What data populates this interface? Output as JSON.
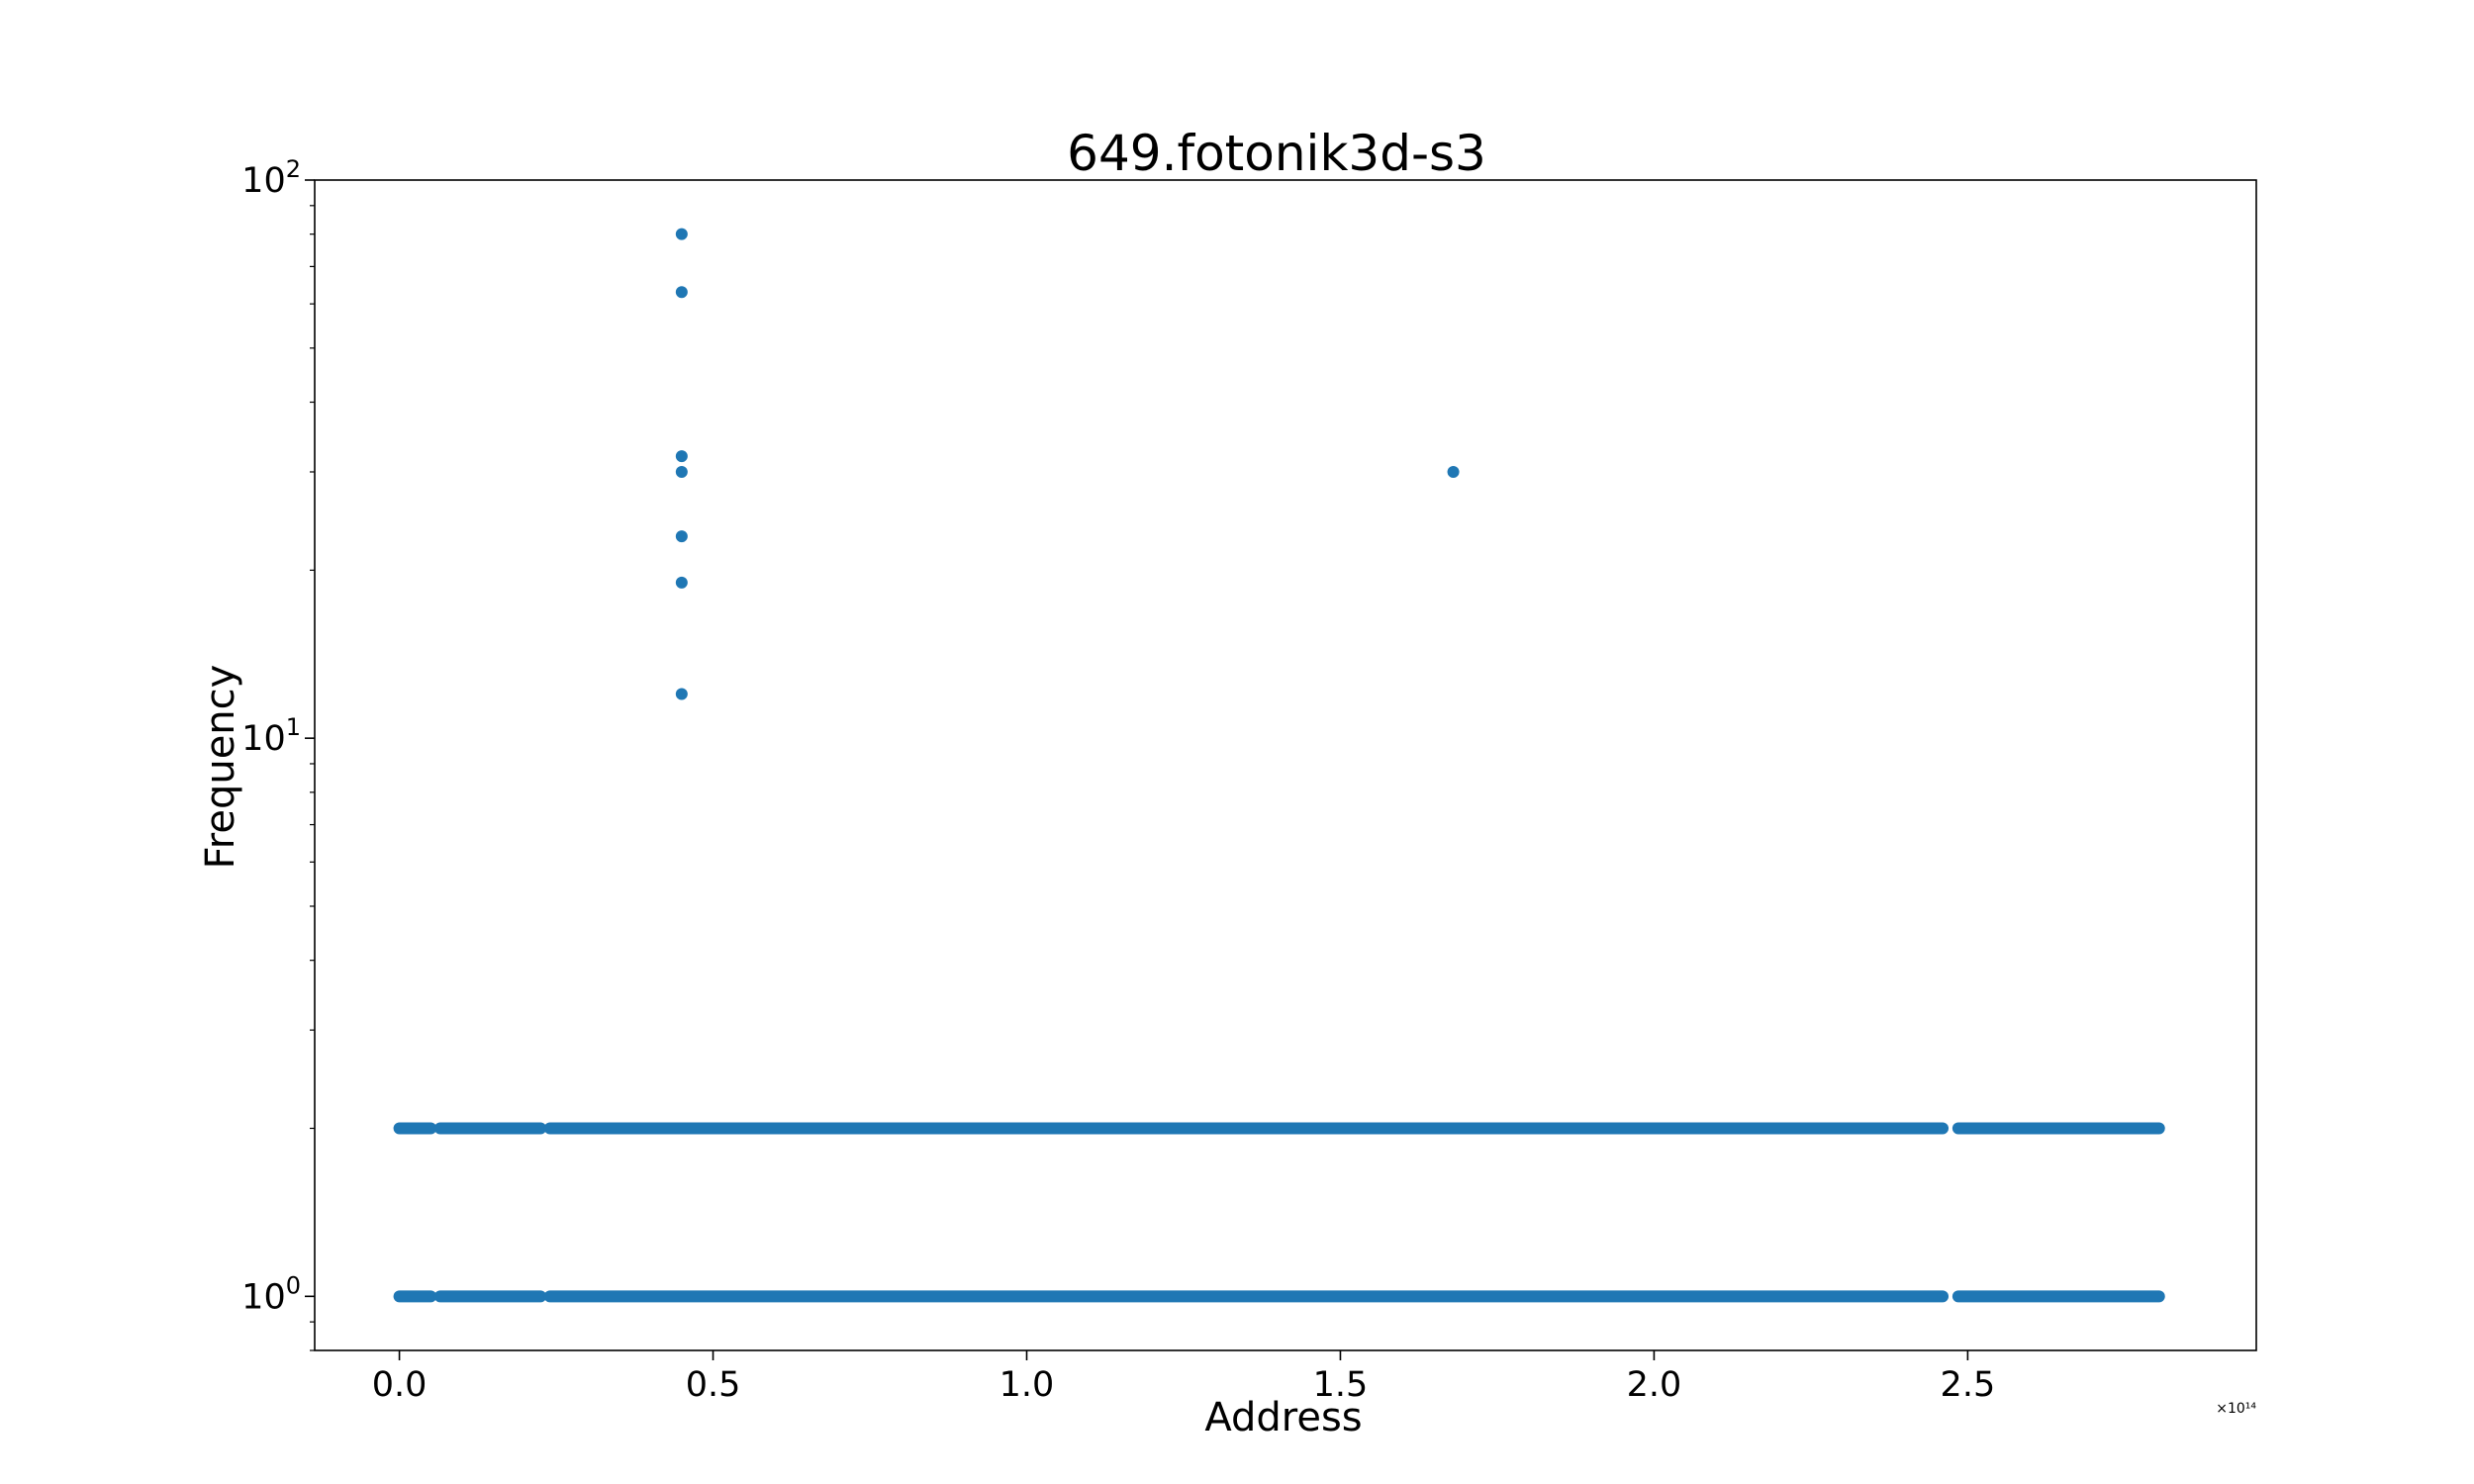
{
  "chart_data": {
    "type": "scatter",
    "title": "649.fotonik3d-s3",
    "xlabel": "Address",
    "ylabel": "Frequency",
    "x_offset_label": "×10¹⁴",
    "x_scale_factor": 100000000000000.0,
    "xlim": [
      -0.135,
      2.96
    ],
    "ylim": [
      0.8,
      100
    ],
    "yscale": "log",
    "grid": false,
    "legend": "none",
    "marker_color": "#1f77b4",
    "x_ticks": [
      {
        "value": 0.0,
        "label": "0.0"
      },
      {
        "value": 0.5,
        "label": "0.5"
      },
      {
        "value": 1.0,
        "label": "1.0"
      },
      {
        "value": 1.5,
        "label": "1.5"
      },
      {
        "value": 2.0,
        "label": "2.0"
      },
      {
        "value": 2.5,
        "label": "2.5"
      }
    ],
    "y_ticks": [
      {
        "value": 1,
        "base": "10",
        "exp": "0"
      },
      {
        "value": 10,
        "base": "10",
        "exp": "1"
      },
      {
        "value": 100,
        "base": "10",
        "exp": "2"
      }
    ],
    "series": [
      {
        "points": [
          {
            "x": 0.45,
            "y": 80
          },
          {
            "x": 0.45,
            "y": 63
          },
          {
            "x": 0.45,
            "y": 32
          },
          {
            "x": 0.45,
            "y": 30
          },
          {
            "x": 0.45,
            "y": 23
          },
          {
            "x": 0.45,
            "y": 19
          },
          {
            "x": 0.45,
            "y": 12
          },
          {
            "x": 1.68,
            "y": 30
          }
        ],
        "dense_bands": [
          {
            "y": 2,
            "x_segments": [
              [
                0.0,
                0.05
              ],
              [
                0.065,
                0.225
              ],
              [
                0.24,
                2.46
              ],
              [
                2.485,
                2.805
              ]
            ]
          },
          {
            "y": 1,
            "x_segments": [
              [
                0.0,
                0.05
              ],
              [
                0.065,
                0.225
              ],
              [
                0.24,
                2.46
              ],
              [
                2.485,
                2.805
              ]
            ]
          }
        ]
      }
    ]
  }
}
